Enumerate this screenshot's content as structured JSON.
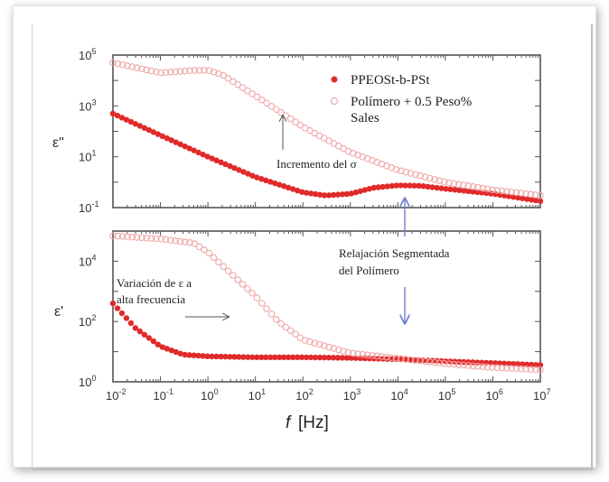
{
  "chart_data": [
    {
      "type": "scatter",
      "panel": "top",
      "ylabel": "ε\"",
      "yscale": "log",
      "ylim": [
        0.1,
        100000
      ],
      "xlim": [
        0.01,
        10000000
      ],
      "ytick_exponents": [
        "5",
        "3",
        "1",
        "-1"
      ],
      "series": [
        {
          "name": "PPEOSt-b-PSt",
          "marker": "filled",
          "x": [
            0.01,
            0.1,
            1,
            10,
            100,
            300,
            1000,
            3000,
            10000,
            30000,
            100000,
            1000000,
            10000000
          ],
          "y": [
            500,
            70,
            10,
            1.6,
            0.4,
            0.3,
            0.35,
            0.6,
            0.75,
            0.72,
            0.55,
            0.35,
            0.18
          ]
        },
        {
          "name": "Polímero + 0.5 Peso% Sales",
          "marker": "open",
          "x": [
            0.01,
            0.1,
            0.5,
            1,
            2,
            10,
            100,
            1000,
            10000,
            100000,
            1000000,
            10000000
          ],
          "y": [
            50000,
            20000,
            25000,
            25000,
            17000,
            2500,
            150,
            15,
            3,
            1,
            0.5,
            0.3
          ]
        }
      ],
      "legend_placement": "top-right",
      "annotations": [
        "Incremento del σ"
      ]
    },
    {
      "type": "scatter",
      "panel": "bottom",
      "ylabel": "ε'",
      "yscale": "log",
      "ylim": [
        1,
        100000
      ],
      "xlim": [
        0.01,
        10000000
      ],
      "ytick_exponents": [
        "4",
        "2",
        "0"
      ],
      "series": [
        {
          "name": "PPEOSt-b-PSt",
          "marker": "filled",
          "x": [
            0.01,
            0.03,
            0.1,
            0.3,
            1,
            10,
            100,
            1000,
            10000,
            100000,
            1000000,
            10000000
          ],
          "y": [
            400,
            60,
            15,
            8,
            7,
            6.5,
            6.5,
            6.2,
            5.6,
            4.8,
            4.2,
            3.6
          ]
        },
        {
          "name": "Polímero + 0.5 Peso% Sales",
          "marker": "open",
          "x": [
            0.01,
            0.1,
            0.5,
            1,
            3,
            10,
            30,
            100,
            1000,
            10000,
            100000,
            1000000,
            10000000
          ],
          "y": [
            70000,
            55000,
            40000,
            20000,
            4000,
            700,
            100,
            25,
            9,
            6,
            4,
            3,
            2.5
          ]
        }
      ],
      "annotations": [
        "Variación de ε a",
        "alta frecuencia",
        "Relajación Segmentada",
        "del Polímero"
      ]
    }
  ],
  "xaxis": {
    "label_f": "f",
    "label_unit": "[Hz]",
    "tick_exponents": [
      "-2",
      "-1",
      "0",
      "1",
      "2",
      "3",
      "4",
      "5",
      "6",
      "7"
    ]
  },
  "labels": {
    "top_ylabel": "ε\"",
    "bottom_ylabel": "ε'",
    "legend_filled": "PPEOSt-b-PSt",
    "legend_open_line1": "Polímero + 0.5 Peso%",
    "legend_open_line2": "Sales",
    "ann_sigma": "Incremento del σ",
    "ann_var1": "Variación de ε a",
    "ann_var2": "alta frecuencia",
    "ann_rel1": "Relajación Segmentada",
    "ann_rel2": "del Polímero"
  },
  "colors": {
    "filled_marker": "#e02a2a",
    "open_marker": "#f0a8a8",
    "axis": "#555555",
    "arrow_blue": "#6d7fd0",
    "arrow_gray": "#555555"
  }
}
